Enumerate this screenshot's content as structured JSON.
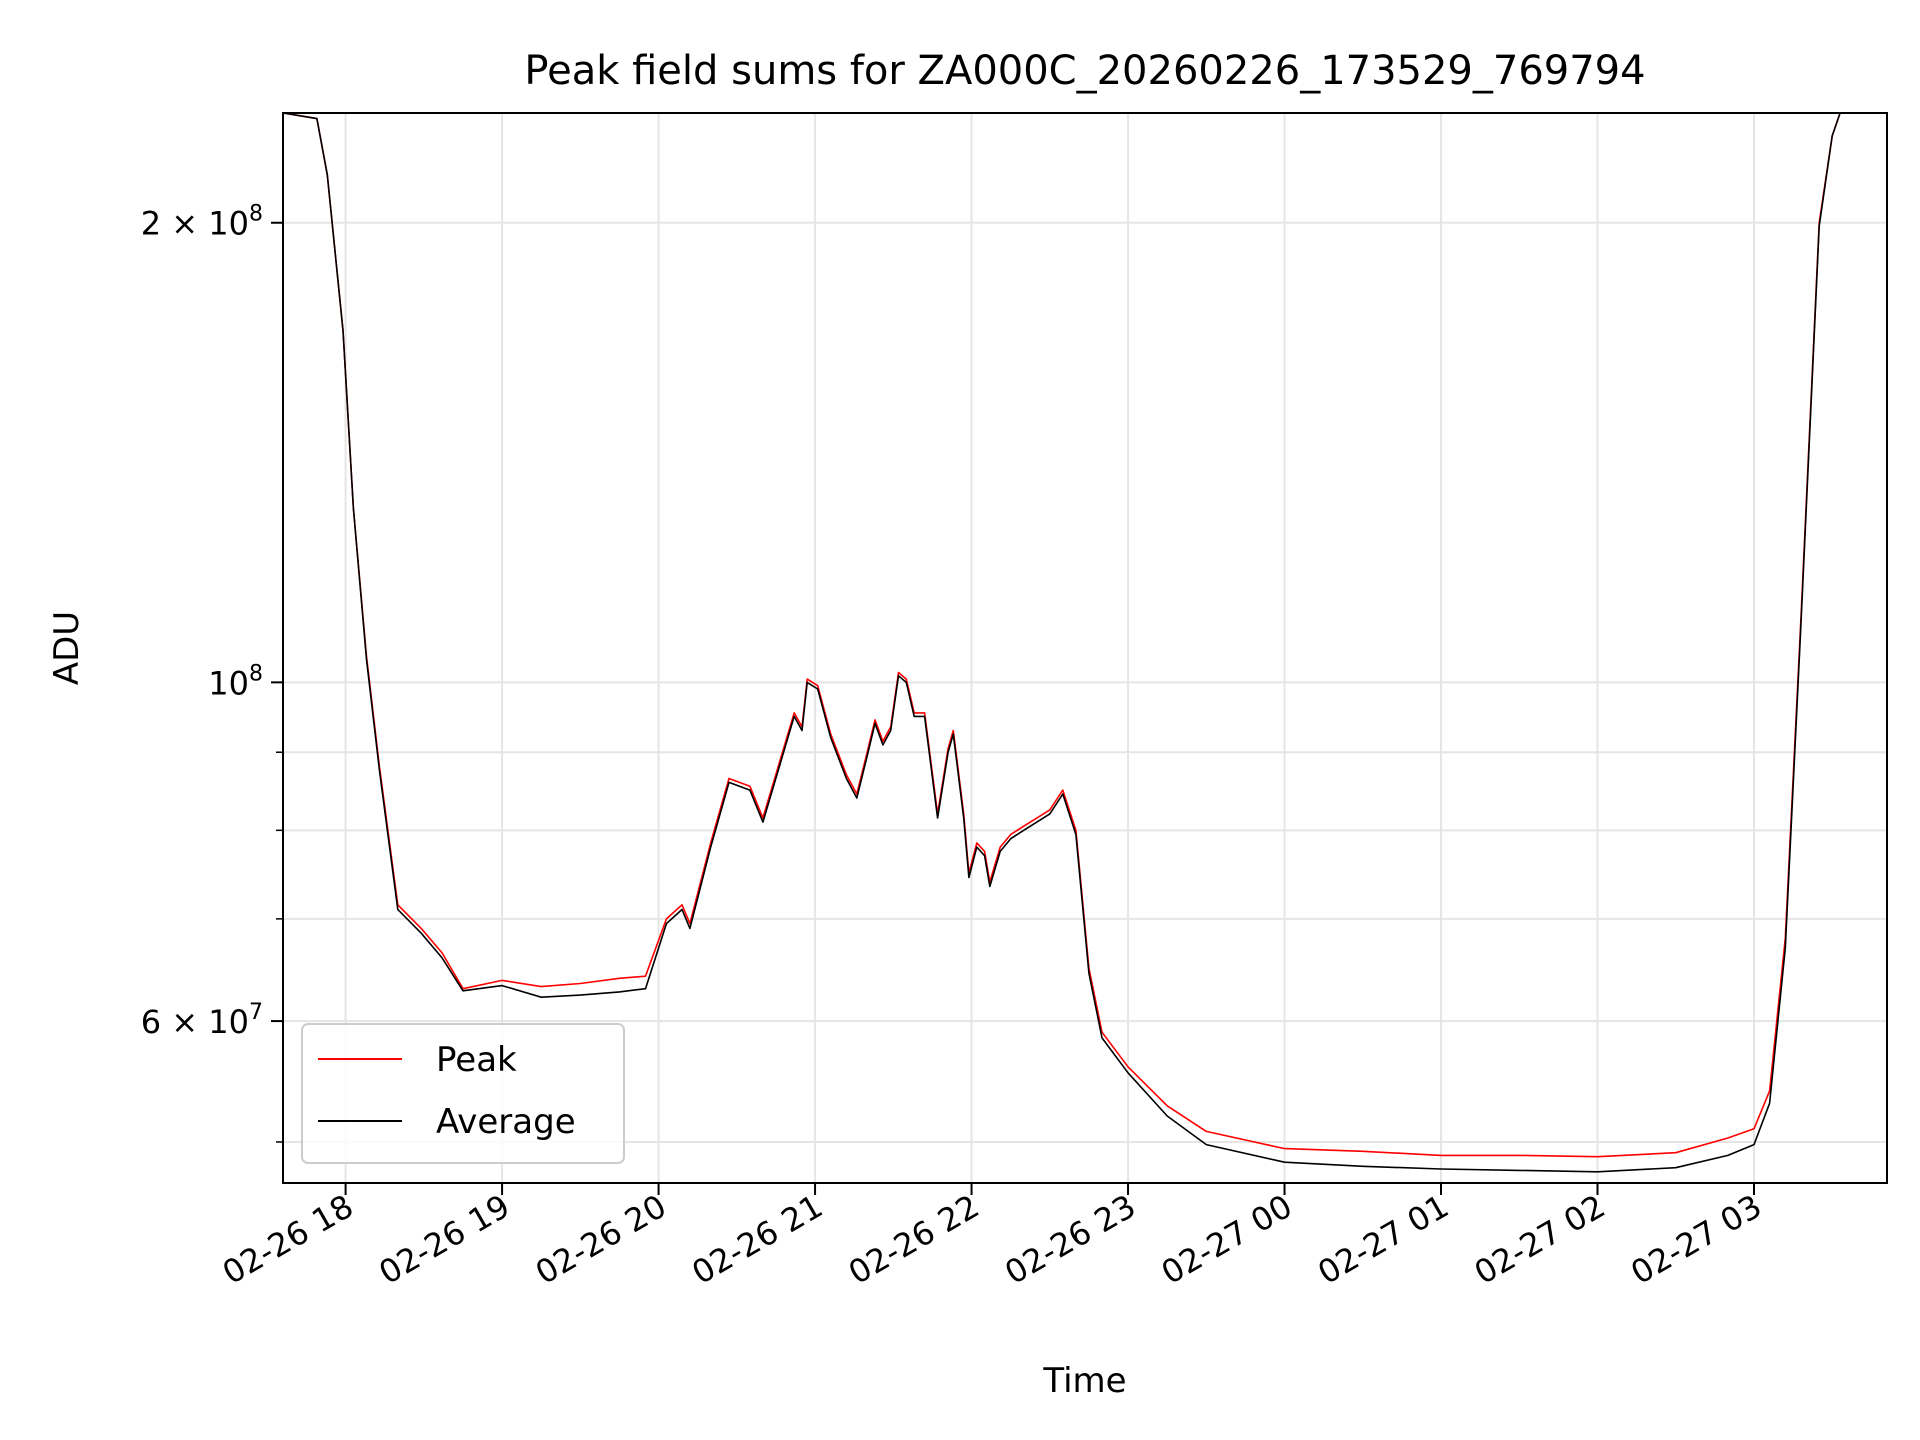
{
  "chart_data": {
    "type": "line",
    "title": "Peak field sums for ZA000C_20260226_173529_769794",
    "xlabel": "Time",
    "ylabel": "ADU",
    "y_scale": "log",
    "ylim": [
      47000000,
      236000000
    ],
    "xlim": [
      "2026-02-26T17:36",
      "2026-02-27T03:51"
    ],
    "grid": true,
    "legend_position": "lower-left",
    "x_ticks": [
      {
        "t": "2026-02-26T18:00",
        "label": "02-26 18"
      },
      {
        "t": "2026-02-26T19:00",
        "label": "02-26 19"
      },
      {
        "t": "2026-02-26T20:00",
        "label": "02-26 20"
      },
      {
        "t": "2026-02-26T21:00",
        "label": "02-26 21"
      },
      {
        "t": "2026-02-26T22:00",
        "label": "02-26 22"
      },
      {
        "t": "2026-02-26T23:00",
        "label": "02-26 23"
      },
      {
        "t": "2026-02-27T00:00",
        "label": "02-27 00"
      },
      {
        "t": "2026-02-27T01:00",
        "label": "02-27 01"
      },
      {
        "t": "2026-02-27T02:00",
        "label": "02-27 02"
      },
      {
        "t": "2026-02-27T03:00",
        "label": "02-27 03"
      }
    ],
    "y_major_ticks": [
      {
        "v": 60000000,
        "base": "6 × 10",
        "exp": "7"
      },
      {
        "v": 100000000,
        "base": "10",
        "exp": "8"
      },
      {
        "v": 200000000,
        "base": "2 × 10",
        "exp": "8"
      }
    ],
    "y_minor_ticks": [
      50000000,
      70000000,
      80000000,
      90000000
    ],
    "series": [
      {
        "name": "Peak",
        "color": "#ff0000",
        "points": [
          [
            "2026-02-26T17:36",
            236000000
          ],
          [
            "2026-02-26T17:49",
            234000000
          ],
          [
            "2026-02-26T17:53",
            215000000
          ],
          [
            "2026-02-26T17:59",
            170000000
          ],
          [
            "2026-02-26T18:03",
            130000000
          ],
          [
            "2026-02-26T18:08",
            104000000
          ],
          [
            "2026-02-26T18:13",
            88000000
          ],
          [
            "2026-02-26T18:20",
            71500000
          ],
          [
            "2026-02-26T18:29",
            69000000
          ],
          [
            "2026-02-26T18:37",
            66500000
          ],
          [
            "2026-02-26T18:45",
            63000000
          ],
          [
            "2026-02-26T19:00",
            63800000
          ],
          [
            "2026-02-26T19:15",
            63200000
          ],
          [
            "2026-02-26T19:30",
            63500000
          ],
          [
            "2026-02-26T19:45",
            64000000
          ],
          [
            "2026-02-26T19:55",
            64200000
          ],
          [
            "2026-02-26T20:03",
            70000000
          ],
          [
            "2026-02-26T20:09",
            71500000
          ],
          [
            "2026-02-26T20:12",
            69500000
          ],
          [
            "2026-02-26T20:20",
            78500000
          ],
          [
            "2026-02-26T20:27",
            86500000
          ],
          [
            "2026-02-26T20:35",
            85500000
          ],
          [
            "2026-02-26T20:40",
            81500000
          ],
          [
            "2026-02-26T20:52",
            95500000
          ],
          [
            "2026-02-26T20:55",
            93500000
          ],
          [
            "2026-02-26T20:57",
            100500000
          ],
          [
            "2026-02-26T21:01",
            99500000
          ],
          [
            "2026-02-26T21:06",
            92500000
          ],
          [
            "2026-02-26T21:12",
            87000000
          ],
          [
            "2026-02-26T21:16",
            84500000
          ],
          [
            "2026-02-26T21:20",
            90000000
          ],
          [
            "2026-02-26T21:23",
            94500000
          ],
          [
            "2026-02-26T21:26",
            91500000
          ],
          [
            "2026-02-26T21:29",
            93500000
          ],
          [
            "2026-02-26T21:32",
            101500000
          ],
          [
            "2026-02-26T21:35",
            100500000
          ],
          [
            "2026-02-26T21:38",
            95500000
          ],
          [
            "2026-02-26T21:42",
            95500000
          ],
          [
            "2026-02-26T21:47",
            82000000
          ],
          [
            "2026-02-26T21:51",
            90500000
          ],
          [
            "2026-02-26T21:53",
            93000000
          ],
          [
            "2026-02-26T21:57",
            82000000
          ],
          [
            "2026-02-26T21:59",
            75000000
          ],
          [
            "2026-02-26T22:02",
            78500000
          ],
          [
            "2026-02-26T22:05",
            77500000
          ],
          [
            "2026-02-26T22:07",
            74000000
          ],
          [
            "2026-02-26T22:11",
            78000000
          ],
          [
            "2026-02-26T22:15",
            79500000
          ],
          [
            "2026-02-26T22:20",
            80500000
          ],
          [
            "2026-02-26T22:30",
            82500000
          ],
          [
            "2026-02-26T22:35",
            85000000
          ],
          [
            "2026-02-26T22:40",
            80000000
          ],
          [
            "2026-02-26T22:45",
            65000000
          ],
          [
            "2026-02-26T22:50",
            59000000
          ],
          [
            "2026-02-26T23:00",
            56000000
          ],
          [
            "2026-02-26T23:15",
            52800000
          ],
          [
            "2026-02-26T23:30",
            50800000
          ],
          [
            "2026-02-27T00:00",
            49500000
          ],
          [
            "2026-02-27T00:30",
            49300000
          ],
          [
            "2026-02-27T01:00",
            49000000
          ],
          [
            "2026-02-27T01:30",
            49000000
          ],
          [
            "2026-02-27T02:00",
            48900000
          ],
          [
            "2026-02-27T02:30",
            49200000
          ],
          [
            "2026-02-27T02:50",
            50300000
          ],
          [
            "2026-02-27T03:00",
            51000000
          ],
          [
            "2026-02-27T03:06",
            54000000
          ],
          [
            "2026-02-27T03:12",
            68000000
          ],
          [
            "2026-02-27T03:18",
            110000000
          ],
          [
            "2026-02-27T03:25",
            200000000
          ],
          [
            "2026-02-27T03:30",
            228000000
          ],
          [
            "2026-02-27T03:33",
            236000000
          ],
          [
            "2026-02-27T03:51",
            236000000
          ]
        ]
      },
      {
        "name": "Average",
        "color": "#000000",
        "points": [
          [
            "2026-02-26T17:36",
            236000000
          ],
          [
            "2026-02-26T17:49",
            234000000
          ],
          [
            "2026-02-26T17:53",
            215000000
          ],
          [
            "2026-02-26T17:59",
            170000000
          ],
          [
            "2026-02-26T18:03",
            130000000
          ],
          [
            "2026-02-26T18:08",
            103500000
          ],
          [
            "2026-02-26T18:13",
            87500000
          ],
          [
            "2026-02-26T18:20",
            71000000
          ],
          [
            "2026-02-26T18:29",
            68500000
          ],
          [
            "2026-02-26T18:37",
            66000000
          ],
          [
            "2026-02-26T18:45",
            62800000
          ],
          [
            "2026-02-26T19:00",
            63300000
          ],
          [
            "2026-02-26T19:15",
            62200000
          ],
          [
            "2026-02-26T19:30",
            62400000
          ],
          [
            "2026-02-26T19:45",
            62700000
          ],
          [
            "2026-02-26T19:55",
            63000000
          ],
          [
            "2026-02-26T20:03",
            69500000
          ],
          [
            "2026-02-26T20:09",
            71000000
          ],
          [
            "2026-02-26T20:12",
            69000000
          ],
          [
            "2026-02-26T20:20",
            78000000
          ],
          [
            "2026-02-26T20:27",
            86000000
          ],
          [
            "2026-02-26T20:35",
            85000000
          ],
          [
            "2026-02-26T20:40",
            81000000
          ],
          [
            "2026-02-26T20:52",
            95000000
          ],
          [
            "2026-02-26T20:55",
            93000000
          ],
          [
            "2026-02-26T20:57",
            100000000
          ],
          [
            "2026-02-26T21:01",
            99000000
          ],
          [
            "2026-02-26T21:06",
            92000000
          ],
          [
            "2026-02-26T21:12",
            86500000
          ],
          [
            "2026-02-26T21:16",
            84000000
          ],
          [
            "2026-02-26T21:20",
            89500000
          ],
          [
            "2026-02-26T21:23",
            94000000
          ],
          [
            "2026-02-26T21:26",
            91000000
          ],
          [
            "2026-02-26T21:29",
            93000000
          ],
          [
            "2026-02-26T21:32",
            101000000
          ],
          [
            "2026-02-26T21:35",
            100000000
          ],
          [
            "2026-02-26T21:38",
            95000000
          ],
          [
            "2026-02-26T21:42",
            95000000
          ],
          [
            "2026-02-26T21:47",
            81500000
          ],
          [
            "2026-02-26T21:51",
            90000000
          ],
          [
            "2026-02-26T21:53",
            92500000
          ],
          [
            "2026-02-26T21:57",
            81500000
          ],
          [
            "2026-02-26T21:59",
            74500000
          ],
          [
            "2026-02-26T22:02",
            78000000
          ],
          [
            "2026-02-26T22:05",
            77000000
          ],
          [
            "2026-02-26T22:07",
            73500000
          ],
          [
            "2026-02-26T22:11",
            77500000
          ],
          [
            "2026-02-26T22:15",
            79000000
          ],
          [
            "2026-02-26T22:20",
            80000000
          ],
          [
            "2026-02-26T22:30",
            82000000
          ],
          [
            "2026-02-26T22:35",
            84500000
          ],
          [
            "2026-02-26T22:40",
            79500000
          ],
          [
            "2026-02-26T22:45",
            64500000
          ],
          [
            "2026-02-26T22:50",
            58500000
          ],
          [
            "2026-02-26T23:00",
            55500000
          ],
          [
            "2026-02-26T23:15",
            52000000
          ],
          [
            "2026-02-26T23:30",
            49800000
          ],
          [
            "2026-02-27T00:00",
            48500000
          ],
          [
            "2026-02-27T00:30",
            48200000
          ],
          [
            "2026-02-27T01:00",
            48000000
          ],
          [
            "2026-02-27T01:30",
            47900000
          ],
          [
            "2026-02-27T02:00",
            47800000
          ],
          [
            "2026-02-27T02:30",
            48100000
          ],
          [
            "2026-02-27T02:50",
            49000000
          ],
          [
            "2026-02-27T03:00",
            49800000
          ],
          [
            "2026-02-27T03:06",
            53000000
          ],
          [
            "2026-02-27T03:12",
            67000000
          ],
          [
            "2026-02-27T03:18",
            109000000
          ],
          [
            "2026-02-27T03:25",
            199000000
          ],
          [
            "2026-02-27T03:30",
            228000000
          ],
          [
            "2026-02-27T03:33",
            236000000
          ],
          [
            "2026-02-27T03:51",
            236000000
          ]
        ]
      }
    ]
  }
}
